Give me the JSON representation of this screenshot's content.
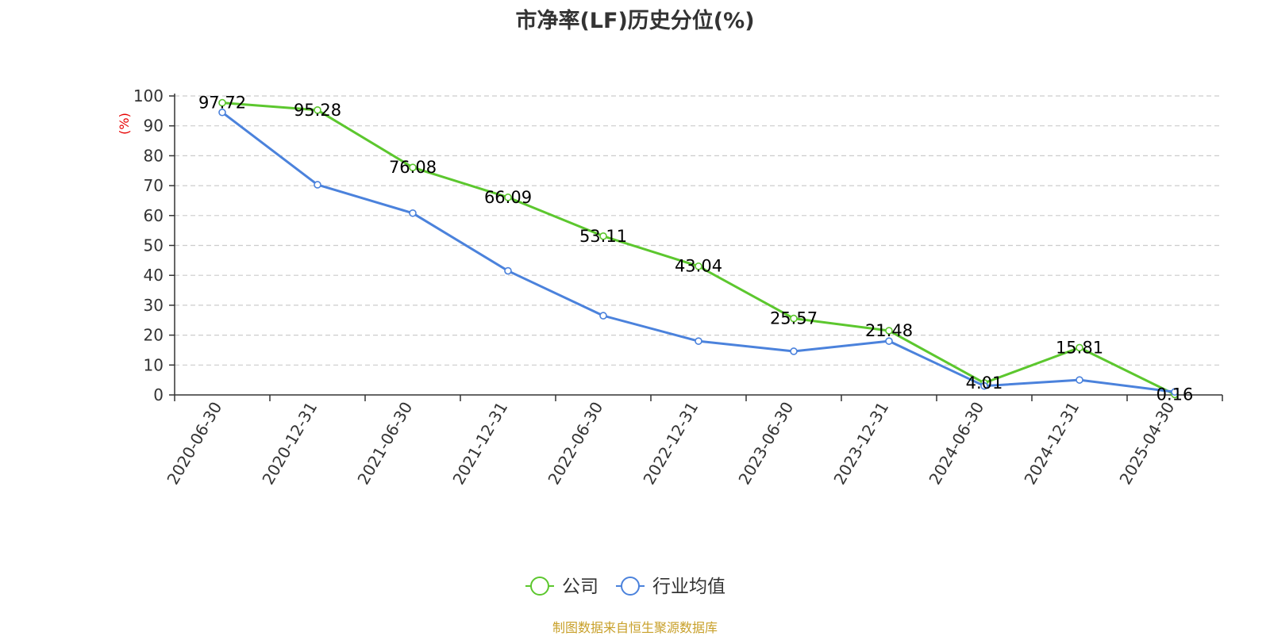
{
  "chart_data": {
    "type": "line",
    "title": "市净率(LF)历史分位(%)",
    "ylabel": "(%)",
    "xlabel": "",
    "ylim": [
      0,
      100
    ],
    "yticks": [
      0,
      10,
      20,
      30,
      40,
      50,
      60,
      70,
      80,
      90,
      100
    ],
    "grid": true,
    "legend_position": "bottom",
    "categories": [
      "2020-06-30",
      "2020-12-31",
      "2021-06-30",
      "2021-12-31",
      "2022-06-30",
      "2022-12-31",
      "2023-06-30",
      "2023-12-31",
      "2024-06-30",
      "2024-12-31",
      "2025-04-30"
    ],
    "series": [
      {
        "name": "公司",
        "color": "#5cc72e",
        "values": [
          97.72,
          95.28,
          76.08,
          66.09,
          53.11,
          43.04,
          25.57,
          21.48,
          4.01,
          15.81,
          0.16
        ],
        "labels": [
          "97.72",
          "95.28",
          "76.08",
          "66.09",
          "53.11",
          "43.04",
          "25.57",
          "21.48",
          "4.01",
          "15.81",
          "0.16"
        ]
      },
      {
        "name": "行业均值",
        "color": "#4b82dc",
        "values": [
          94.5,
          70.3,
          60.8,
          41.5,
          26.5,
          18.0,
          14.6,
          18.0,
          3.0,
          5.0,
          1.0
        ]
      }
    ]
  },
  "footer": {
    "source": "制图数据来自恒生聚源数据库"
  }
}
